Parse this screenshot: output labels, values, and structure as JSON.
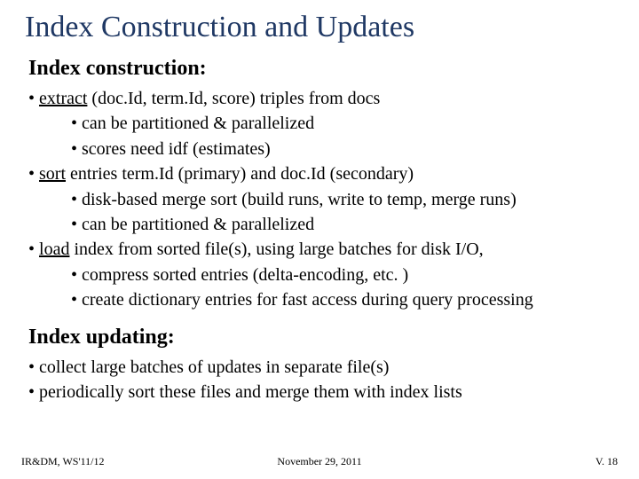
{
  "title": "Index Construction and Updates",
  "sections": [
    {
      "heading": "Index construction:",
      "lines": [
        {
          "level": 1,
          "prefix": "• ",
          "underlined": "extract",
          "rest": " (doc.Id, term.Id, score) triples from docs"
        },
        {
          "level": 2,
          "prefix": "• ",
          "underlined": "",
          "rest": "can be partitioned & parallelized"
        },
        {
          "level": 2,
          "prefix": "• ",
          "underlined": "",
          "rest": "scores need idf (estimates)"
        },
        {
          "level": 1,
          "prefix": "• ",
          "underlined": "sort",
          "rest": " entries term.Id (primary) and doc.Id (secondary)"
        },
        {
          "level": 2,
          "prefix": "• ",
          "underlined": "",
          "rest": "disk-based merge sort (build runs, write to temp, merge runs)"
        },
        {
          "level": 2,
          "prefix": "• ",
          "underlined": "",
          "rest": "can be partitioned & parallelized"
        },
        {
          "level": 1,
          "prefix": "• ",
          "underlined": "load",
          "rest": " index from sorted file(s), using large batches for disk I/O,"
        },
        {
          "level": 2,
          "prefix": "• ",
          "underlined": "",
          "rest": "compress sorted entries (delta-encoding, etc. )"
        },
        {
          "level": 2,
          "prefix": "• ",
          "underlined": "",
          "rest": "create dictionary entries for fast access during query processing"
        }
      ]
    },
    {
      "heading": "Index updating:",
      "lines": [
        {
          "level": 1,
          "prefix": "• ",
          "underlined": "",
          "rest": "collect large batches of updates in separate file(s)"
        },
        {
          "level": 1,
          "prefix": "• ",
          "underlined": "",
          "rest": "periodically sort these files and merge them with index lists"
        }
      ]
    }
  ],
  "footer": {
    "left": "IR&DM, WS'11/12",
    "center": "November 29, 2011",
    "right": "V. 18"
  },
  "colors": {
    "title": "#1f3864",
    "text": "#000000",
    "background": "#ffffff"
  }
}
